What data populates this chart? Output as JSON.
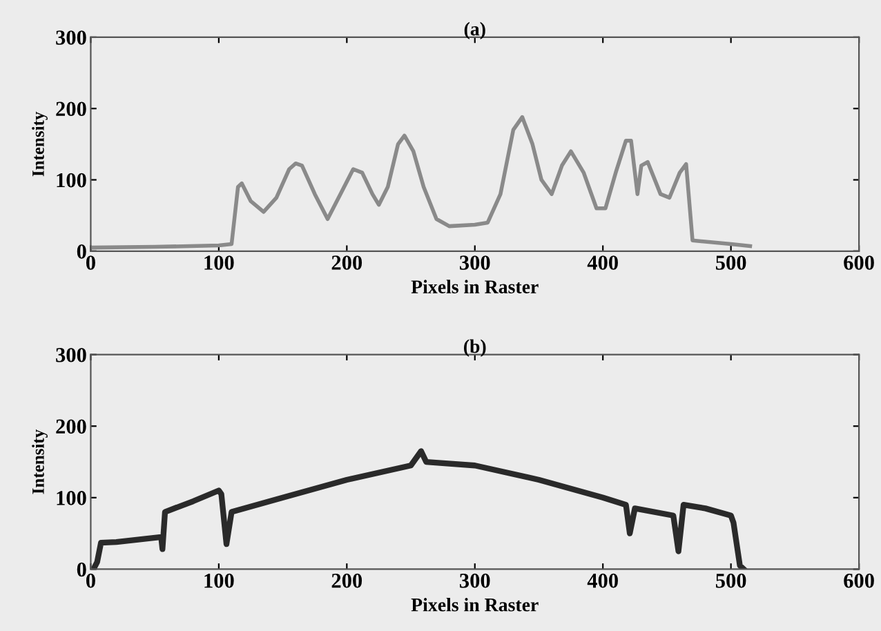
{
  "chart_data": [
    {
      "type": "line",
      "title": "(a)",
      "xlabel": "Pixels in Raster",
      "ylabel": "Intensity",
      "xlim": [
        0,
        600
      ],
      "xticks": [
        0,
        100,
        200,
        300,
        400,
        500,
        600
      ],
      "ylim": [
        0,
        300
      ],
      "yticks": [
        0,
        100,
        200,
        300
      ],
      "grid": false,
      "series": [
        {
          "color": "#8a8a8a",
          "x": [
            0,
            50,
            100,
            110,
            115,
            118,
            125,
            135,
            145,
            155,
            160,
            165,
            175,
            185,
            195,
            205,
            212,
            220,
            225,
            232,
            240,
            245,
            252,
            260,
            270,
            280,
            300,
            310,
            320,
            330,
            337,
            345,
            352,
            360,
            368,
            375,
            385,
            395,
            402,
            410,
            418,
            422,
            427,
            430,
            435,
            445,
            452,
            460,
            465,
            470,
            500,
            515
          ],
          "values": [
            5,
            6,
            8,
            10,
            90,
            95,
            70,
            55,
            75,
            115,
            123,
            120,
            80,
            45,
            80,
            115,
            110,
            80,
            65,
            90,
            150,
            162,
            140,
            90,
            45,
            35,
            37,
            40,
            80,
            170,
            188,
            150,
            100,
            80,
            120,
            140,
            110,
            60,
            60,
            110,
            155,
            155,
            80,
            120,
            125,
            80,
            75,
            110,
            122,
            15,
            10,
            7
          ]
        }
      ]
    },
    {
      "type": "line",
      "title": "(b)",
      "xlabel": "Pixels in Raster",
      "ylabel": "Intensity",
      "xlim": [
        0,
        600
      ],
      "xticks": [
        0,
        100,
        200,
        300,
        400,
        500,
        600
      ],
      "ylim": [
        0,
        300
      ],
      "yticks": [
        0,
        100,
        200,
        300
      ],
      "grid": false,
      "series": [
        {
          "color": "#2a2a2a",
          "x": [
            3,
            5,
            8,
            20,
            55,
            56,
            58,
            80,
            100,
            102,
            106,
            110,
            150,
            200,
            250,
            258,
            262,
            300,
            350,
            400,
            418,
            421,
            425,
            455,
            459,
            463,
            480,
            500,
            502,
            507,
            510
          ],
          "values": [
            3,
            10,
            37,
            38,
            45,
            28,
            80,
            95,
            110,
            105,
            35,
            80,
            100,
            125,
            145,
            165,
            150,
            145,
            125,
            100,
            90,
            50,
            85,
            75,
            25,
            90,
            85,
            75,
            65,
            5,
            0
          ]
        }
      ]
    }
  ]
}
